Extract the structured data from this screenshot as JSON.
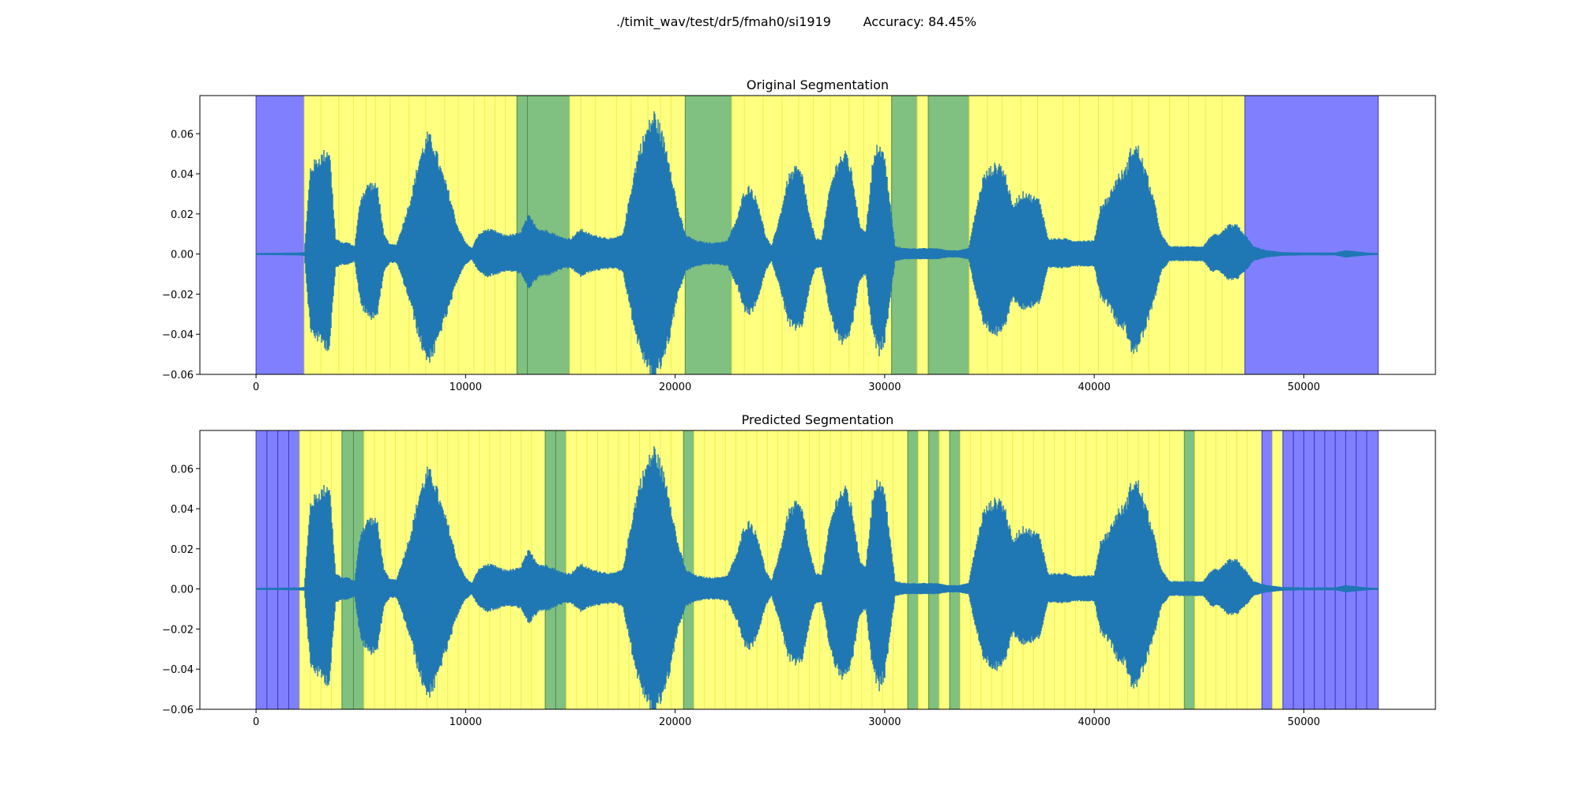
{
  "figure": {
    "title": "./timit_wav/test/dr5/fmah0/si1919        Accuracy: 84.45%"
  },
  "colors": {
    "silence": "#8080ff",
    "voiced": "#ffff80",
    "other": "#80c080",
    "waveform": "#1f77b4",
    "voiced_boundary": "#eeee55"
  },
  "chart_data": [
    {
      "type": "area",
      "title": "Original Segmentation",
      "xlim": [
        -2680,
        56280
      ],
      "ylim": [
        -0.06,
        0.079
      ],
      "xticks": [
        0,
        10000,
        20000,
        30000,
        40000,
        50000
      ],
      "xtick_labels": [
        "0",
        "10000",
        "20000",
        "30000",
        "40000",
        "50000"
      ],
      "yticks": [
        -0.06,
        -0.04,
        -0.02,
        0.0,
        0.02,
        0.04,
        0.06
      ],
      "ytick_labels": [
        "−0.06",
        "−0.04",
        "−0.02",
        "0.00",
        "0.02",
        "0.04",
        "0.06"
      ],
      "grid": false,
      "segments": [
        {
          "start": 0,
          "end": 2300,
          "label": "silence"
        },
        {
          "start": 2300,
          "end": 12450,
          "label": "voiced"
        },
        {
          "start": 12450,
          "end": 12950,
          "label": "other"
        },
        {
          "start": 12950,
          "end": 14970,
          "label": "other"
        },
        {
          "start": 14970,
          "end": 20480,
          "label": "voiced"
        },
        {
          "start": 20480,
          "end": 22700,
          "label": "other"
        },
        {
          "start": 22700,
          "end": 30330,
          "label": "voiced"
        },
        {
          "start": 30330,
          "end": 31550,
          "label": "other"
        },
        {
          "start": 31550,
          "end": 32080,
          "label": "voiced"
        },
        {
          "start": 32080,
          "end": 34030,
          "label": "other"
        },
        {
          "start": 34030,
          "end": 47190,
          "label": "voiced"
        },
        {
          "start": 47190,
          "end": 53550,
          "label": "silence"
        }
      ],
      "voiced_boundaries": [
        3100,
        3950,
        4650,
        5250,
        5700,
        6400,
        7300,
        8100,
        9000,
        9650,
        10400,
        10900,
        11400,
        11900,
        15500,
        16200,
        17200,
        17900,
        18700,
        19300,
        19800,
        23300,
        24200,
        25100,
        25900,
        26600,
        27400,
        28300,
        29000,
        29700,
        34900,
        35600,
        36500,
        37300,
        38500,
        39300,
        40200,
        40900,
        41800,
        42600,
        43600,
        44500,
        45300,
        46100
      ],
      "waveform_envelope": {
        "x": [
          0,
          2000,
          2300,
          2600,
          3000,
          3500,
          3800,
          4100,
          4400,
          4700,
          5000,
          5400,
          5800,
          6100,
          6400,
          6700,
          7000,
          7400,
          7800,
          8200,
          8500,
          8800,
          9200,
          9600,
          10000,
          10300,
          10600,
          11000,
          11400,
          11800,
          12200,
          12600,
          13000,
          13500,
          14000,
          14500,
          15000,
          15500,
          16000,
          16500,
          17000,
          17500,
          18000,
          18300,
          18700,
          19000,
          19300,
          19700,
          20100,
          20500,
          21000,
          21500,
          22000,
          22500,
          23000,
          23300,
          23600,
          24000,
          24300,
          24600,
          25000,
          25400,
          25800,
          26100,
          26400,
          26700,
          27000,
          27400,
          27800,
          28200,
          28500,
          28800,
          29100,
          29400,
          29700,
          30000,
          30500,
          31000,
          31500,
          32000,
          32500,
          33000,
          33500,
          34000,
          34300,
          34700,
          35100,
          35500,
          35800,
          36100,
          36400,
          36700,
          37000,
          37400,
          37800,
          38200,
          38600,
          39000,
          39500,
          40000,
          40300,
          40700,
          41100,
          41500,
          41800,
          42100,
          42400,
          42800,
          43200,
          43600,
          44000,
          44400,
          44800,
          45200,
          45600,
          46000,
          46400,
          46800,
          47200,
          47600,
          48200,
          49000,
          50000,
          51000,
          51500,
          52000,
          53000,
          53550
        ],
        "upper": [
          0.0005,
          0.0008,
          0.001,
          0.045,
          0.05,
          0.055,
          0.008,
          0.006,
          0.006,
          0.004,
          0.03,
          0.037,
          0.035,
          0.01,
          0.005,
          0.005,
          0.015,
          0.03,
          0.05,
          0.062,
          0.057,
          0.045,
          0.032,
          0.015,
          0.006,
          0.003,
          0.01,
          0.013,
          0.012,
          0.01,
          0.01,
          0.011,
          0.02,
          0.013,
          0.012,
          0.009,
          0.008,
          0.013,
          0.01,
          0.009,
          0.008,
          0.01,
          0.04,
          0.055,
          0.066,
          0.073,
          0.065,
          0.05,
          0.025,
          0.01,
          0.007,
          0.006,
          0.006,
          0.007,
          0.02,
          0.033,
          0.035,
          0.025,
          0.01,
          0.004,
          0.02,
          0.04,
          0.045,
          0.04,
          0.02,
          0.008,
          0.008,
          0.035,
          0.05,
          0.052,
          0.038,
          0.015,
          0.012,
          0.045,
          0.058,
          0.05,
          0.004,
          0.003,
          0.003,
          0.003,
          0.003,
          0.002,
          0.002,
          0.003,
          0.02,
          0.04,
          0.045,
          0.047,
          0.04,
          0.025,
          0.03,
          0.032,
          0.03,
          0.028,
          0.008,
          0.008,
          0.008,
          0.007,
          0.007,
          0.007,
          0.025,
          0.03,
          0.04,
          0.044,
          0.056,
          0.055,
          0.045,
          0.03,
          0.01,
          0.004,
          0.004,
          0.004,
          0.004,
          0.004,
          0.01,
          0.01,
          0.015,
          0.015,
          0.01,
          0.004,
          0.002,
          0.001,
          0.0008,
          0.0008,
          0.0008,
          0.002,
          0.0008,
          0.0005
        ]
      }
    },
    {
      "type": "area",
      "title": "Predicted Segmentation",
      "xlim": [
        -2680,
        56280
      ],
      "ylim": [
        -0.06,
        0.079
      ],
      "xticks": [
        0,
        10000,
        20000,
        30000,
        40000,
        50000
      ],
      "xtick_labels": [
        "0",
        "10000",
        "20000",
        "30000",
        "40000",
        "50000"
      ],
      "yticks": [
        -0.06,
        -0.04,
        -0.02,
        0.0,
        0.02,
        0.04,
        0.06
      ],
      "ytick_labels": [
        "−0.06",
        "−0.04",
        "−0.02",
        "0.00",
        "0.02",
        "0.04",
        "0.06"
      ],
      "grid": false,
      "segments": [
        {
          "start": 0,
          "end": 520,
          "label": "silence"
        },
        {
          "start": 520,
          "end": 1040,
          "label": "silence"
        },
        {
          "start": 1040,
          "end": 1560,
          "label": "silence"
        },
        {
          "start": 1560,
          "end": 2080,
          "label": "silence"
        },
        {
          "start": 2080,
          "end": 4100,
          "label": "voiced"
        },
        {
          "start": 4100,
          "end": 4650,
          "label": "other"
        },
        {
          "start": 4650,
          "end": 5150,
          "label": "other"
        },
        {
          "start": 5150,
          "end": 13800,
          "label": "voiced"
        },
        {
          "start": 13800,
          "end": 14300,
          "label": "other"
        },
        {
          "start": 14300,
          "end": 14800,
          "label": "other"
        },
        {
          "start": 14800,
          "end": 20400,
          "label": "voiced"
        },
        {
          "start": 20400,
          "end": 20900,
          "label": "other"
        },
        {
          "start": 20900,
          "end": 31100,
          "label": "voiced"
        },
        {
          "start": 31100,
          "end": 31600,
          "label": "other"
        },
        {
          "start": 31600,
          "end": 32100,
          "label": "voiced"
        },
        {
          "start": 32100,
          "end": 32600,
          "label": "other"
        },
        {
          "start": 32600,
          "end": 33100,
          "label": "voiced"
        },
        {
          "start": 33100,
          "end": 33600,
          "label": "other"
        },
        {
          "start": 33600,
          "end": 44300,
          "label": "voiced"
        },
        {
          "start": 44300,
          "end": 44800,
          "label": "other"
        },
        {
          "start": 44800,
          "end": 48000,
          "label": "voiced"
        },
        {
          "start": 48000,
          "end": 48500,
          "label": "silence"
        },
        {
          "start": 48500,
          "end": 49000,
          "label": "voiced"
        },
        {
          "start": 49000,
          "end": 49500,
          "label": "silence"
        },
        {
          "start": 49500,
          "end": 50000,
          "label": "silence"
        },
        {
          "start": 50000,
          "end": 50500,
          "label": "silence"
        },
        {
          "start": 50500,
          "end": 51000,
          "label": "silence"
        },
        {
          "start": 51000,
          "end": 51500,
          "label": "silence"
        },
        {
          "start": 51500,
          "end": 52000,
          "label": "silence"
        },
        {
          "start": 52000,
          "end": 52500,
          "label": "silence"
        },
        {
          "start": 52500,
          "end": 53000,
          "label": "silence"
        },
        {
          "start": 53000,
          "end": 53550,
          "label": "silence"
        }
      ],
      "voiced_boundaries": [
        2600,
        3100,
        3600,
        5650,
        6150,
        6650,
        7150,
        7650,
        8150,
        8650,
        9150,
        9650,
        10150,
        10650,
        11150,
        11650,
        12150,
        12650,
        13150,
        15300,
        15800,
        16300,
        16800,
        17300,
        17800,
        18300,
        18800,
        19300,
        19800,
        21400,
        21900,
        22400,
        22900,
        23400,
        23900,
        24400,
        24900,
        25400,
        25900,
        26400,
        26900,
        27400,
        27900,
        28400,
        28900,
        29400,
        29900,
        30400,
        34100,
        34600,
        35100,
        35600,
        36100,
        36600,
        37100,
        37600,
        38100,
        38600,
        39100,
        39600,
        40100,
        40600,
        41100,
        41600,
        42100,
        42600,
        43100,
        43600,
        45300,
        45800,
        46300,
        46800,
        47300
      ],
      "waveform_envelope": {
        "x": [
          0,
          2000,
          2300,
          2600,
          3000,
          3500,
          3800,
          4100,
          4400,
          4700,
          5000,
          5400,
          5800,
          6100,
          6400,
          6700,
          7000,
          7400,
          7800,
          8200,
          8500,
          8800,
          9200,
          9600,
          10000,
          10300,
          10600,
          11000,
          11400,
          11800,
          12200,
          12600,
          13000,
          13500,
          14000,
          14500,
          15000,
          15500,
          16000,
          16500,
          17000,
          17500,
          18000,
          18300,
          18700,
          19000,
          19300,
          19700,
          20100,
          20500,
          21000,
          21500,
          22000,
          22500,
          23000,
          23300,
          23600,
          24000,
          24300,
          24600,
          25000,
          25400,
          25800,
          26100,
          26400,
          26700,
          27000,
          27400,
          27800,
          28200,
          28500,
          28800,
          29100,
          29400,
          29700,
          30000,
          30500,
          31000,
          31500,
          32000,
          32500,
          33000,
          33500,
          34000,
          34300,
          34700,
          35100,
          35500,
          35800,
          36100,
          36400,
          36700,
          37000,
          37400,
          37800,
          38200,
          38600,
          39000,
          39500,
          40000,
          40300,
          40700,
          41100,
          41500,
          41800,
          42100,
          42400,
          42800,
          43200,
          43600,
          44000,
          44400,
          44800,
          45200,
          45600,
          46000,
          46400,
          46800,
          47200,
          47600,
          48200,
          49000,
          50000,
          51000,
          51500,
          52000,
          53000,
          53550
        ],
        "upper": [
          0.0005,
          0.0008,
          0.001,
          0.045,
          0.05,
          0.055,
          0.008,
          0.006,
          0.006,
          0.004,
          0.03,
          0.037,
          0.035,
          0.01,
          0.005,
          0.005,
          0.015,
          0.03,
          0.05,
          0.062,
          0.057,
          0.045,
          0.032,
          0.015,
          0.006,
          0.003,
          0.01,
          0.013,
          0.012,
          0.01,
          0.01,
          0.011,
          0.02,
          0.013,
          0.012,
          0.009,
          0.008,
          0.013,
          0.01,
          0.009,
          0.008,
          0.01,
          0.04,
          0.055,
          0.066,
          0.073,
          0.065,
          0.05,
          0.025,
          0.01,
          0.007,
          0.006,
          0.006,
          0.007,
          0.02,
          0.033,
          0.035,
          0.025,
          0.01,
          0.004,
          0.02,
          0.04,
          0.045,
          0.04,
          0.02,
          0.008,
          0.008,
          0.035,
          0.05,
          0.052,
          0.038,
          0.015,
          0.012,
          0.045,
          0.058,
          0.05,
          0.004,
          0.003,
          0.003,
          0.003,
          0.003,
          0.002,
          0.002,
          0.003,
          0.02,
          0.04,
          0.045,
          0.047,
          0.04,
          0.025,
          0.03,
          0.032,
          0.03,
          0.028,
          0.008,
          0.008,
          0.008,
          0.007,
          0.007,
          0.007,
          0.025,
          0.03,
          0.04,
          0.044,
          0.056,
          0.055,
          0.045,
          0.03,
          0.01,
          0.004,
          0.004,
          0.004,
          0.004,
          0.004,
          0.01,
          0.01,
          0.015,
          0.015,
          0.01,
          0.004,
          0.002,
          0.001,
          0.0008,
          0.0008,
          0.0008,
          0.002,
          0.0008,
          0.0005
        ]
      }
    }
  ]
}
